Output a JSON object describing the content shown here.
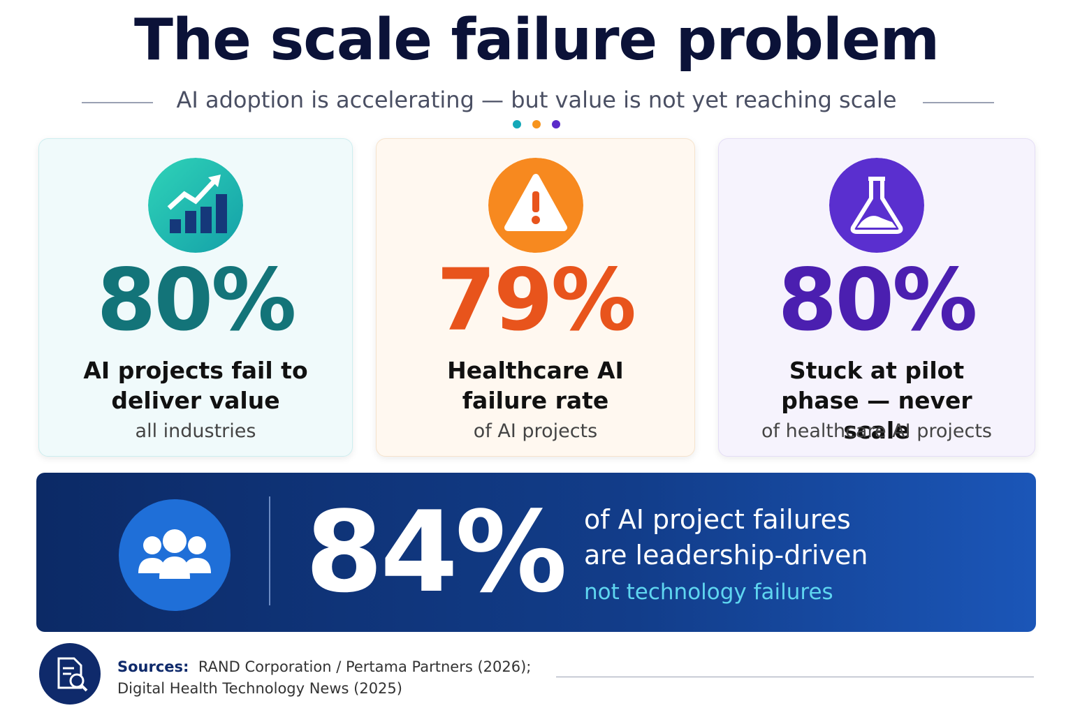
{
  "header": {
    "title": "The scale failure problem",
    "subtitle": "AI adoption is accelerating — but value is not yet reaching scale"
  },
  "cards": [
    {
      "stat": "80%",
      "label": "AI projects fail to deliver value",
      "note": "all industries"
    },
    {
      "stat": "79%",
      "label": "Healthcare AI failure rate",
      "note": "of AI projects"
    },
    {
      "stat": "80%",
      "label": "Stuck at pilot phase — never scale",
      "note": "of healthcare AI projects"
    }
  ],
  "banner": {
    "stat": "84%",
    "label": "of AI project failures are leadership-driven",
    "note": "not technology failures"
  },
  "sources": {
    "heading": "Sources:",
    "lines": [
      "RAND Corporation / Pertama Partners (2026);",
      "Digital Health Technology News (2025)"
    ]
  }
}
